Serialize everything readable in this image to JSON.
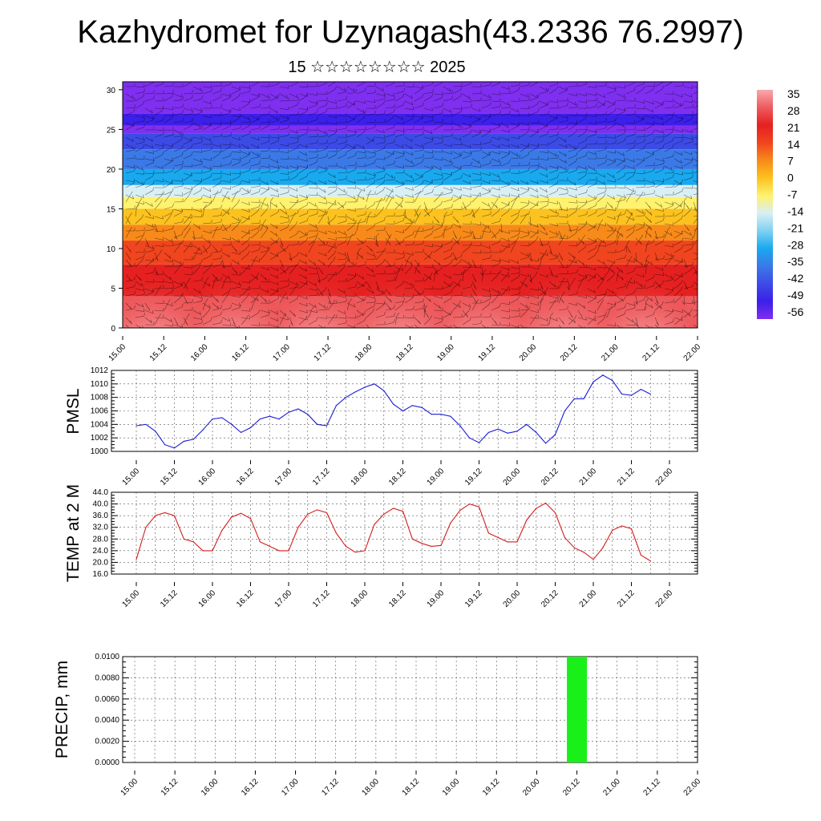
{
  "title": "Kazhydromet for Uzynagash(43.2336 76.2997)",
  "subtitle": "15 ☆☆☆☆☆☆☆☆ 2025",
  "x_tick_labels": [
    "15.00",
    "15.12",
    "16.00",
    "16.12",
    "17.00",
    "17.12",
    "18.00",
    "18.12",
    "19.00",
    "19.12",
    "20.00",
    "20.12",
    "21.00",
    "21.12",
    "22.00"
  ],
  "colorbar": {
    "labels": [
      "35",
      "28",
      "21",
      "14",
      "7",
      "0",
      "-7",
      "-14",
      "-21",
      "-28",
      "-35",
      "-42",
      "-49",
      "-56"
    ],
    "colors": [
      "#f7a9ae",
      "#ee5b5e",
      "#e62020",
      "#f0451f",
      "#f88a1a",
      "#fcc21f",
      "#fff26e",
      "#d9eff6",
      "#7fd1f2",
      "#19a9ee",
      "#3b79e7",
      "#3c4be6",
      "#3c1fe9",
      "#7f2fef"
    ]
  },
  "chart_data": [
    {
      "type": "heatmap",
      "yticks": [
        0,
        5,
        10,
        15,
        20,
        25,
        30
      ],
      "ylim": [
        0,
        31
      ],
      "x_range_hours": [
        0,
        168
      ],
      "bands": [
        {
          "y0": 0,
          "y1": 4,
          "value": 30
        },
        {
          "y0": 4,
          "y1": 8,
          "value": 23
        },
        {
          "y0": 8,
          "y1": 11,
          "value": 17
        },
        {
          "y0": 11,
          "y1": 13,
          "value": 10
        },
        {
          "y0": 13,
          "y1": 15,
          "value": 3
        },
        {
          "y0": 15,
          "y1": 16.5,
          "value": -5
        },
        {
          "y0": 16.5,
          "y1": 18,
          "value": -15
        },
        {
          "y0": 18,
          "y1": 20,
          "value": -25
        },
        {
          "y0": 20,
          "y1": 22.5,
          "value": -35
        },
        {
          "y0": 22.5,
          "y1": 24.5,
          "value": -45
        },
        {
          "y0": 24.5,
          "y1": 25.5,
          "value": -54
        },
        {
          "y0": 25.5,
          "y1": 27,
          "value": -50
        },
        {
          "y0": 27,
          "y1": 31,
          "value": -58
        }
      ],
      "warm_domes_hours": [
        9,
        33,
        57,
        81,
        105,
        129,
        153
      ]
    },
    {
      "type": "line",
      "ylabel": "PMSL",
      "yticks": [
        1000,
        1002,
        1004,
        1006,
        1008,
        1010,
        1012
      ],
      "ylim": [
        1000,
        1012
      ],
      "color": "#1c1cd6",
      "x_hours": [
        0,
        3,
        6,
        9,
        12,
        15,
        18,
        21,
        24,
        27,
        30,
        33,
        36,
        39,
        42,
        45,
        48,
        51,
        54,
        57,
        60,
        63,
        66,
        69,
        72,
        75,
        78,
        81,
        84,
        87,
        90,
        93,
        96,
        99,
        102,
        105,
        108,
        111,
        114,
        117,
        120,
        123,
        126,
        129,
        132,
        135,
        138,
        141,
        144,
        147,
        150,
        153,
        156,
        159,
        162
      ],
      "values": [
        1003.8,
        1004.0,
        1003.0,
        1001.0,
        1000.5,
        1001.5,
        1001.8,
        1003.2,
        1004.8,
        1005.0,
        1004.0,
        1002.8,
        1003.5,
        1004.8,
        1005.2,
        1004.8,
        1005.8,
        1006.3,
        1005.5,
        1004.0,
        1003.8,
        1006.8,
        1008.0,
        1008.8,
        1009.5,
        1010.0,
        1009.0,
        1007.0,
        1006.0,
        1006.8,
        1006.5,
        1005.5,
        1005.5,
        1005.2,
        1003.8,
        1002.0,
        1001.3,
        1002.8,
        1003.3,
        1002.7,
        1003.0,
        1004.0,
        1002.8,
        1001.2,
        1002.5,
        1006.0,
        1007.8,
        1007.8,
        1010.3,
        1011.3,
        1010.5,
        1008.5,
        1008.3,
        1009.2,
        1008.5
      ]
    },
    {
      "type": "line",
      "ylabel": "TEMP at 2 M",
      "yticks": [
        16,
        20,
        24,
        28,
        32,
        36,
        40,
        44
      ],
      "ytick_labels": [
        "16.0",
        "20.0",
        "24.0",
        "28.0",
        "32.0",
        "36.0",
        "40.0",
        "44.0"
      ],
      "ylim": [
        16,
        44
      ],
      "color": "#d41c1c",
      "x_hours": [
        0,
        3,
        6,
        9,
        12,
        15,
        18,
        21,
        24,
        27,
        30,
        33,
        36,
        39,
        42,
        45,
        48,
        51,
        54,
        57,
        60,
        63,
        66,
        69,
        72,
        75,
        78,
        81,
        84,
        87,
        90,
        93,
        96,
        99,
        102,
        105,
        108,
        111,
        114,
        117,
        120,
        123,
        126,
        129,
        132,
        135,
        138,
        141,
        144,
        147,
        150,
        153,
        156,
        159,
        162
      ],
      "values": [
        21.0,
        32.0,
        36.0,
        37.0,
        36.0,
        28.0,
        27.0,
        24.0,
        24.0,
        31.0,
        35.5,
        36.8,
        35.0,
        27.0,
        25.5,
        24.0,
        24.0,
        32.0,
        36.5,
        38.0,
        37.0,
        30.0,
        25.5,
        23.5,
        24.0,
        33.0,
        36.5,
        38.5,
        37.5,
        28.0,
        26.5,
        25.5,
        25.8,
        33.5,
        37.8,
        40.0,
        39.0,
        30.0,
        28.5,
        27.0,
        27.0,
        34.5,
        38.5,
        40.3,
        37.0,
        28.5,
        25.0,
        23.5,
        21.0,
        25.0,
        31.0,
        32.5,
        31.5,
        22.5,
        20.5
      ]
    },
    {
      "type": "bar",
      "ylabel": "PRECIP, mm",
      "yticks": [
        0,
        0.002,
        0.004,
        0.006,
        0.008,
        0.01
      ],
      "ytick_labels": [
        "0.0000",
        "0.0020",
        "0.0040",
        "0.0060",
        "0.0080",
        "0.0100"
      ],
      "ylim": [
        0,
        0.01
      ],
      "color": "#19f019",
      "bars": [
        {
          "x_start_hours": 129,
          "x_end_hours": 135,
          "value": 0.01
        }
      ]
    }
  ]
}
